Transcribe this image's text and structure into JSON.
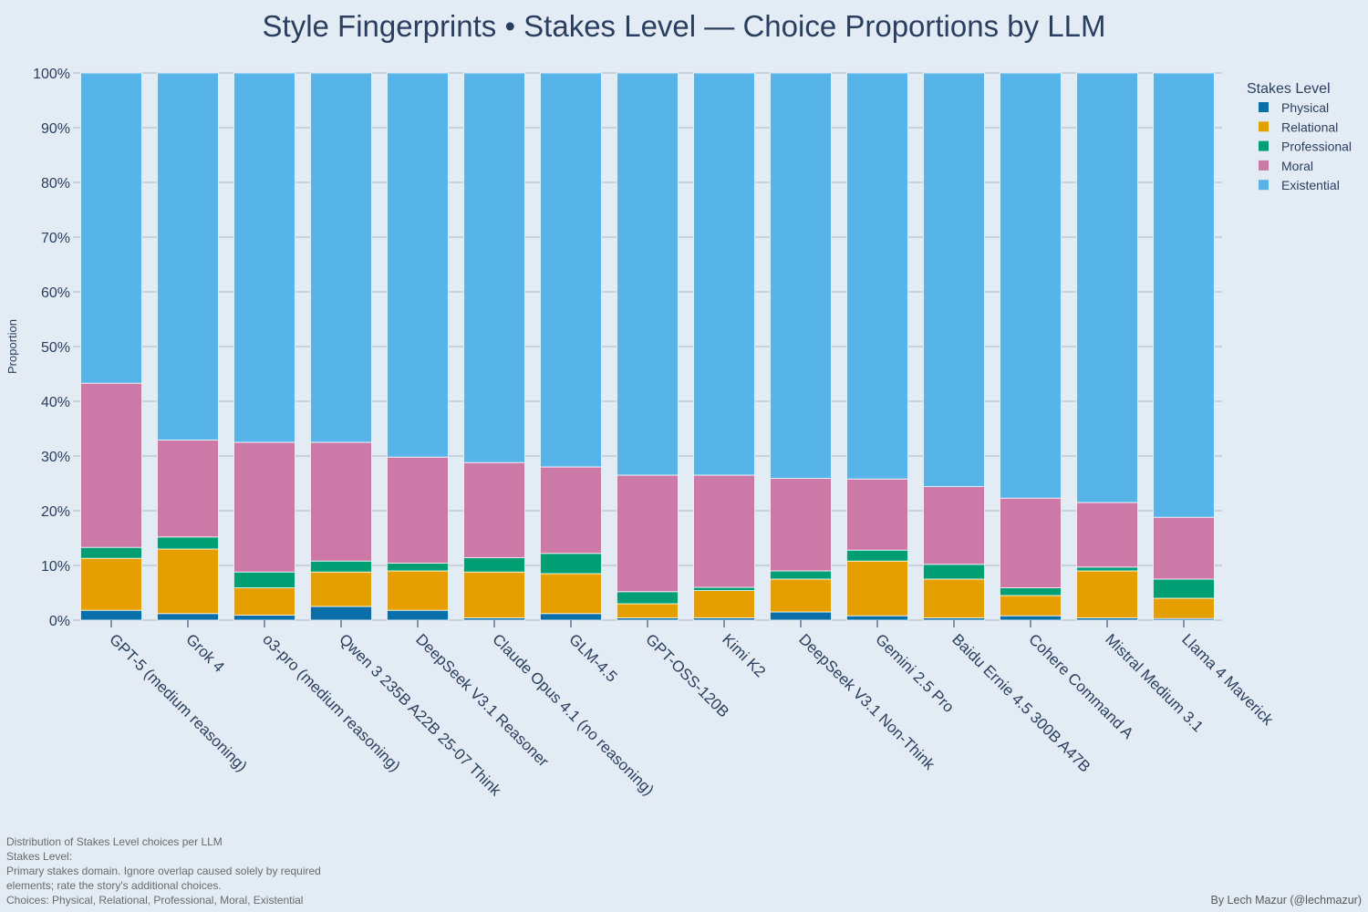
{
  "chart_data": {
    "type": "bar",
    "stacked": true,
    "title": "Style Fingerprints • Stakes Level — Choice Proportions by LLM",
    "ylabel": "Proportion",
    "ylim": [
      0,
      1
    ],
    "yticks": [
      "0%",
      "10%",
      "20%",
      "30%",
      "40%",
      "50%",
      "60%",
      "70%",
      "80%",
      "90%",
      "100%"
    ],
    "grid": true,
    "legend_title": "Stakes Level",
    "legend_position": "top-right",
    "categories": [
      "GPT-5 (medium reasoning)",
      "Grok 4",
      "o3-pro (medium reasoning)",
      "Qwen 3 235B A22B 25-07 Think",
      "DeepSeek V3.1 Reasoner",
      "Claude Opus 4.1 (no reasoning)",
      "GLM-4.5",
      "GPT-OSS-120B",
      "Kimi K2",
      "DeepSeek V3.1 Non-Think",
      "Gemini 2.5 Pro",
      "Baidu Ernie 4.5 300B A47B",
      "Cohere Command A",
      "Mistral Medium 3.1",
      "Llama 4 Maverick"
    ],
    "series": [
      {
        "name": "Physical",
        "color": "#0a6ea8",
        "values": [
          0.018,
          0.012,
          0.009,
          0.025,
          0.018,
          0.004,
          0.012,
          0.004,
          0.004,
          0.015,
          0.008,
          0.004,
          0.008,
          0.004,
          0.003
        ]
      },
      {
        "name": "Relational",
        "color": "#e69f00",
        "values": [
          0.095,
          0.118,
          0.05,
          0.063,
          0.072,
          0.084,
          0.073,
          0.026,
          0.05,
          0.06,
          0.1,
          0.071,
          0.037,
          0.086,
          0.037
        ]
      },
      {
        "name": "Professional",
        "color": "#009e73",
        "values": [
          0.02,
          0.022,
          0.029,
          0.02,
          0.014,
          0.026,
          0.037,
          0.022,
          0.006,
          0.015,
          0.02,
          0.027,
          0.014,
          0.007,
          0.035
        ]
      },
      {
        "name": "Moral",
        "color": "#cc79a7",
        "values": [
          0.3,
          0.177,
          0.237,
          0.217,
          0.194,
          0.174,
          0.158,
          0.213,
          0.205,
          0.169,
          0.13,
          0.142,
          0.164,
          0.118,
          0.113
        ]
      },
      {
        "name": "Existential",
        "color": "#56b4e9",
        "values": [
          0.567,
          0.671,
          0.675,
          0.675,
          0.702,
          0.712,
          0.72,
          0.735,
          0.735,
          0.741,
          0.742,
          0.756,
          0.777,
          0.785,
          0.812
        ]
      }
    ]
  },
  "footnote_lines": [
    "Distribution of Stakes Level choices per LLM",
    "Stakes Level:",
    "Primary stakes domain. Ignore overlap caused solely by required",
    "elements; rate the story's additional choices.",
    "Choices: Physical, Relational, Professional, Moral, Existential"
  ],
  "credit": "By Lech Mazur (@lechmazur)"
}
